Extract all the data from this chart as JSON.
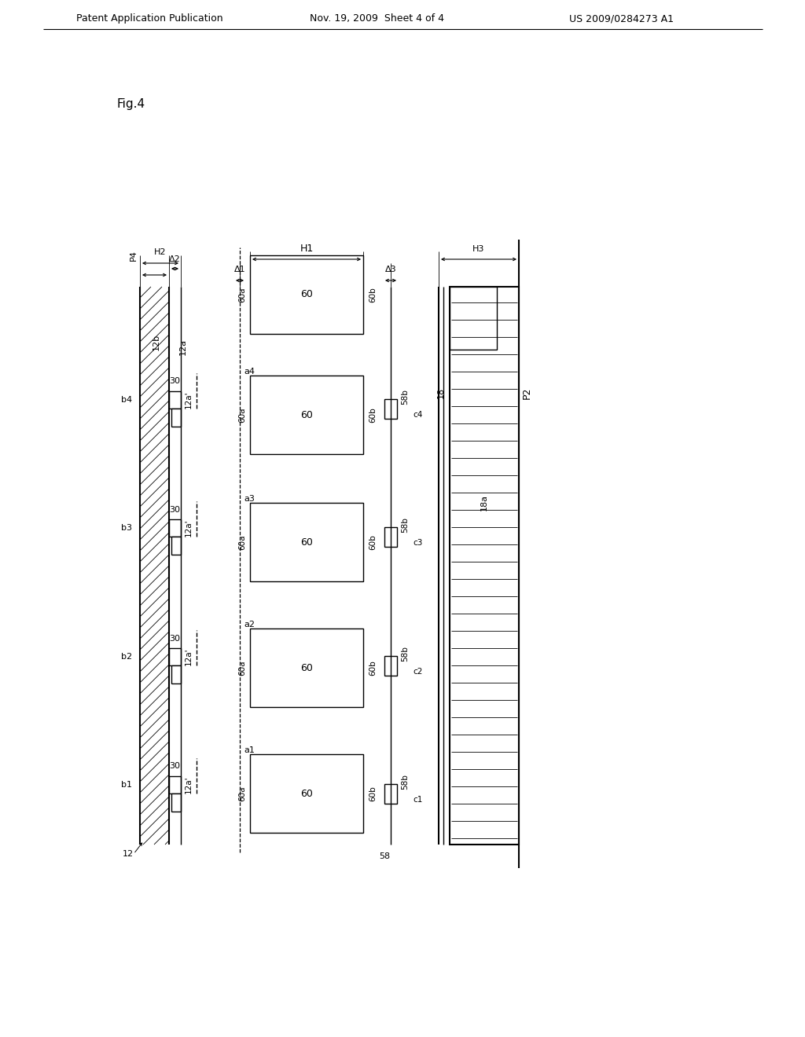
{
  "title_left": "Patent Application Publication",
  "title_mid": "Nov. 19, 2009  Sheet 4 of 4",
  "title_right": "US 2009/0284273 A1",
  "fig_label": "Fig.4",
  "bg_color": "#ffffff"
}
